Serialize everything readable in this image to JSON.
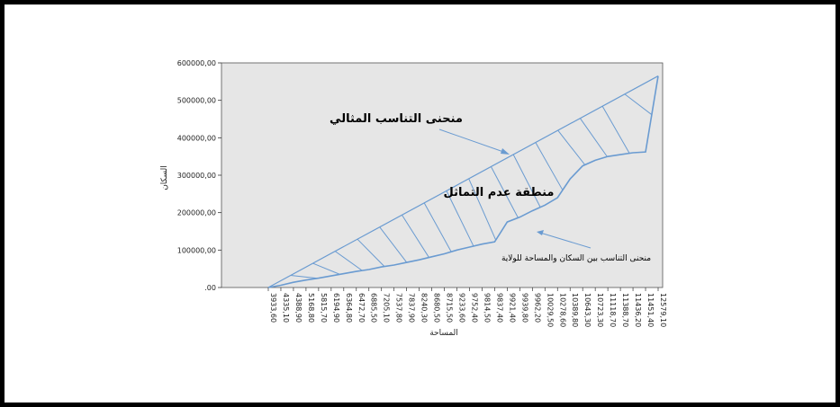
{
  "chart_data": {
    "type": "line",
    "xlabel": "المساحة",
    "ylabel": "السكان",
    "ylim": [
      0,
      600000
    ],
    "y_ticks": [
      ".00",
      "100000,00",
      "200000,00",
      "300000,00",
      "400000,00",
      "500000,00",
      "600000,00"
    ],
    "x_tick_labels": [
      "3933,60",
      "4335,10",
      "4388,90",
      "5168,80",
      "5815,70",
      "6194,90",
      "6364,80",
      "6472,70",
      "6885,50",
      "7205,10",
      "7537,80",
      "7837,90",
      "8240,30",
      "8680,50",
      "8715,50",
      "9233,60",
      "9752,40",
      "9814,50",
      "9837,40",
      "9921,40",
      "9939,80",
      "9962,20",
      "10029,50",
      "10278,60",
      "10389,80",
      "10643,30",
      "10723,30",
      "11118,70",
      "11388,70",
      "11436,20",
      "11451,40",
      "12579,10"
    ],
    "series": [
      {
        "kind": "actual",
        "values": [
          0,
          6000,
          14000,
          20000,
          25000,
          31000,
          37000,
          43000,
          48000,
          55000,
          60000,
          67000,
          74000,
          82000,
          90000,
          100000,
          108000,
          116000,
          122000,
          175000,
          188000,
          205000,
          220000,
          240000,
          290000,
          325000,
          340000,
          350000,
          355000,
          360000,
          362000,
          565000
        ]
      },
      {
        "kind": "ideal",
        "values": [
          0,
          565000
        ]
      }
    ],
    "annotations": [
      {
        "text": "منحنى التناسب المثالي",
        "points_to": "ideal"
      },
      {
        "text": "منطقة عدم التماثل",
        "points_to": "hatched-area"
      },
      {
        "text": "منحنى التناسب بين السكان والمساحة للولاية",
        "points_to": "actual"
      }
    ],
    "colors": {
      "plot_bg": "#e6e6e6",
      "line": "#6a9bd1",
      "hatch": "#6a9bd1",
      "actual_line": "#6a9bd1"
    }
  }
}
